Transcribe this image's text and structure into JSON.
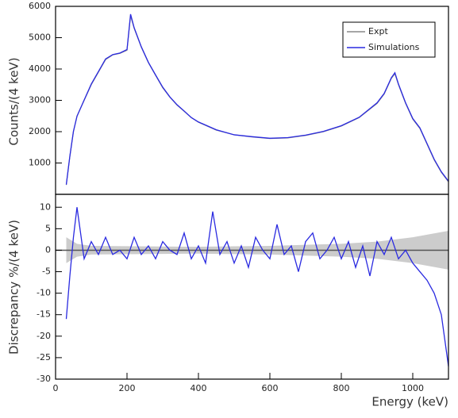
{
  "chart_data": [
    {
      "type": "line",
      "y_label": "Counts/(4 keV)",
      "xlim": [
        0,
        1100
      ],
      "ylim": [
        0,
        6000
      ],
      "yticks": [
        1000,
        2000,
        3000,
        4000,
        5000,
        6000
      ],
      "legend": "top-right",
      "x": [
        30,
        40,
        50,
        60,
        80,
        100,
        120,
        140,
        160,
        180,
        200,
        210,
        220,
        240,
        260,
        280,
        300,
        320,
        340,
        360,
        380,
        400,
        450,
        500,
        550,
        600,
        650,
        700,
        750,
        800,
        850,
        900,
        920,
        940,
        950,
        960,
        980,
        1000,
        1020,
        1040,
        1060,
        1080,
        1100
      ],
      "series": [
        {
          "name": "Expt",
          "color": "#888888",
          "values": [
            300,
            1200,
            2000,
            2500,
            3000,
            3500,
            3900,
            4300,
            4450,
            4500,
            4600,
            5700,
            5300,
            4700,
            4200,
            3800,
            3400,
            3100,
            2850,
            2650,
            2450,
            2300,
            2050,
            1900,
            1830,
            1780,
            1800,
            1880,
            2000,
            2180,
            2450,
            2900,
            3200,
            3700,
            3850,
            3500,
            2900,
            2400,
            2100,
            1600,
            1100,
            700,
            400
          ]
        },
        {
          "name": "Simulations",
          "color": "#2a2ae0",
          "values": [
            310,
            1220,
            2010,
            2490,
            3010,
            3520,
            3920,
            4320,
            4460,
            4510,
            4620,
            5750,
            5320,
            4710,
            4210,
            3810,
            3420,
            3110,
            2860,
            2660,
            2450,
            2310,
            2060,
            1900,
            1840,
            1790,
            1810,
            1890,
            2010,
            2190,
            2460,
            2920,
            3220,
            3720,
            3880,
            3520,
            2920,
            2420,
            2120,
            1620,
            1120,
            720,
            420
          ]
        }
      ]
    },
    {
      "type": "line",
      "x_label": "Energy (keV)",
      "y_label": "Discrepancy %/(4 keV)",
      "xlim": [
        0,
        1100
      ],
      "ylim": [
        -30,
        13
      ],
      "xticks": [
        0,
        200,
        400,
        600,
        800,
        1000
      ],
      "yticks": [
        10,
        5,
        0,
        -5,
        -10,
        -15,
        -20,
        -25,
        -30
      ],
      "reference_line": 0,
      "band": {
        "color": "#cccccc",
        "x": [
          30,
          60,
          100,
          400,
          600,
          800,
          900,
          1000,
          1100
        ],
        "values": [
          3,
          1.5,
          1,
          0.8,
          1,
          1.5,
          2,
          3,
          4.5
        ]
      },
      "x": [
        30,
        40,
        50,
        60,
        80,
        100,
        120,
        140,
        160,
        180,
        200,
        220,
        240,
        260,
        280,
        300,
        320,
        340,
        360,
        380,
        400,
        420,
        440,
        460,
        480,
        500,
        520,
        540,
        560,
        580,
        600,
        620,
        640,
        660,
        680,
        700,
        720,
        740,
        760,
        780,
        800,
        820,
        840,
        860,
        880,
        900,
        920,
        940,
        960,
        980,
        1000,
        1020,
        1040,
        1060,
        1080,
        1100
      ],
      "series": [
        {
          "color": "#2a2ae0",
          "values": [
            -16,
            -6,
            3,
            10,
            -2,
            2,
            -1,
            3,
            -1,
            0,
            -2,
            3,
            -1,
            1,
            -2,
            2,
            0,
            -1,
            4,
            -2,
            1,
            -3,
            9,
            -1,
            2,
            -3,
            1,
            -4,
            3,
            0,
            -2,
            6,
            -1,
            1,
            -5,
            2,
            4,
            -2,
            0,
            3,
            -2,
            2,
            -4,
            1,
            -6,
            2,
            -1,
            3,
            -2,
            0,
            -3,
            -5,
            -7,
            -10,
            -15,
            -27
          ]
        }
      ]
    }
  ]
}
